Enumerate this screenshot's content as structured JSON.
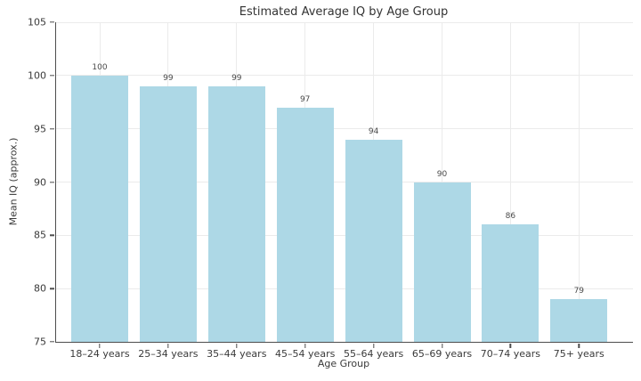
{
  "chart_data": {
    "type": "bar",
    "title": "Estimated Average IQ by Age Group",
    "xlabel": "Age Group",
    "ylabel": "Mean IQ (approx.)",
    "categories": [
      "18–24 years",
      "25–34 years",
      "35–44 years",
      "45–54 years",
      "55–64 years",
      "65–69 years",
      "70–74 years",
      "75+ years"
    ],
    "values": [
      100,
      99,
      99,
      97,
      94,
      90,
      86,
      79
    ],
    "ylim": [
      75,
      105
    ],
    "yticks": [
      75,
      80,
      85,
      90,
      95,
      100,
      105
    ],
    "grid": true,
    "legend": "none",
    "value_labels": true,
    "colors": {
      "bar_fill": "#ADD8E6",
      "background": "#ffffff",
      "gridline": "#ebebeb",
      "spine": "#4d4d4d",
      "text": "#3a3a3a"
    }
  }
}
